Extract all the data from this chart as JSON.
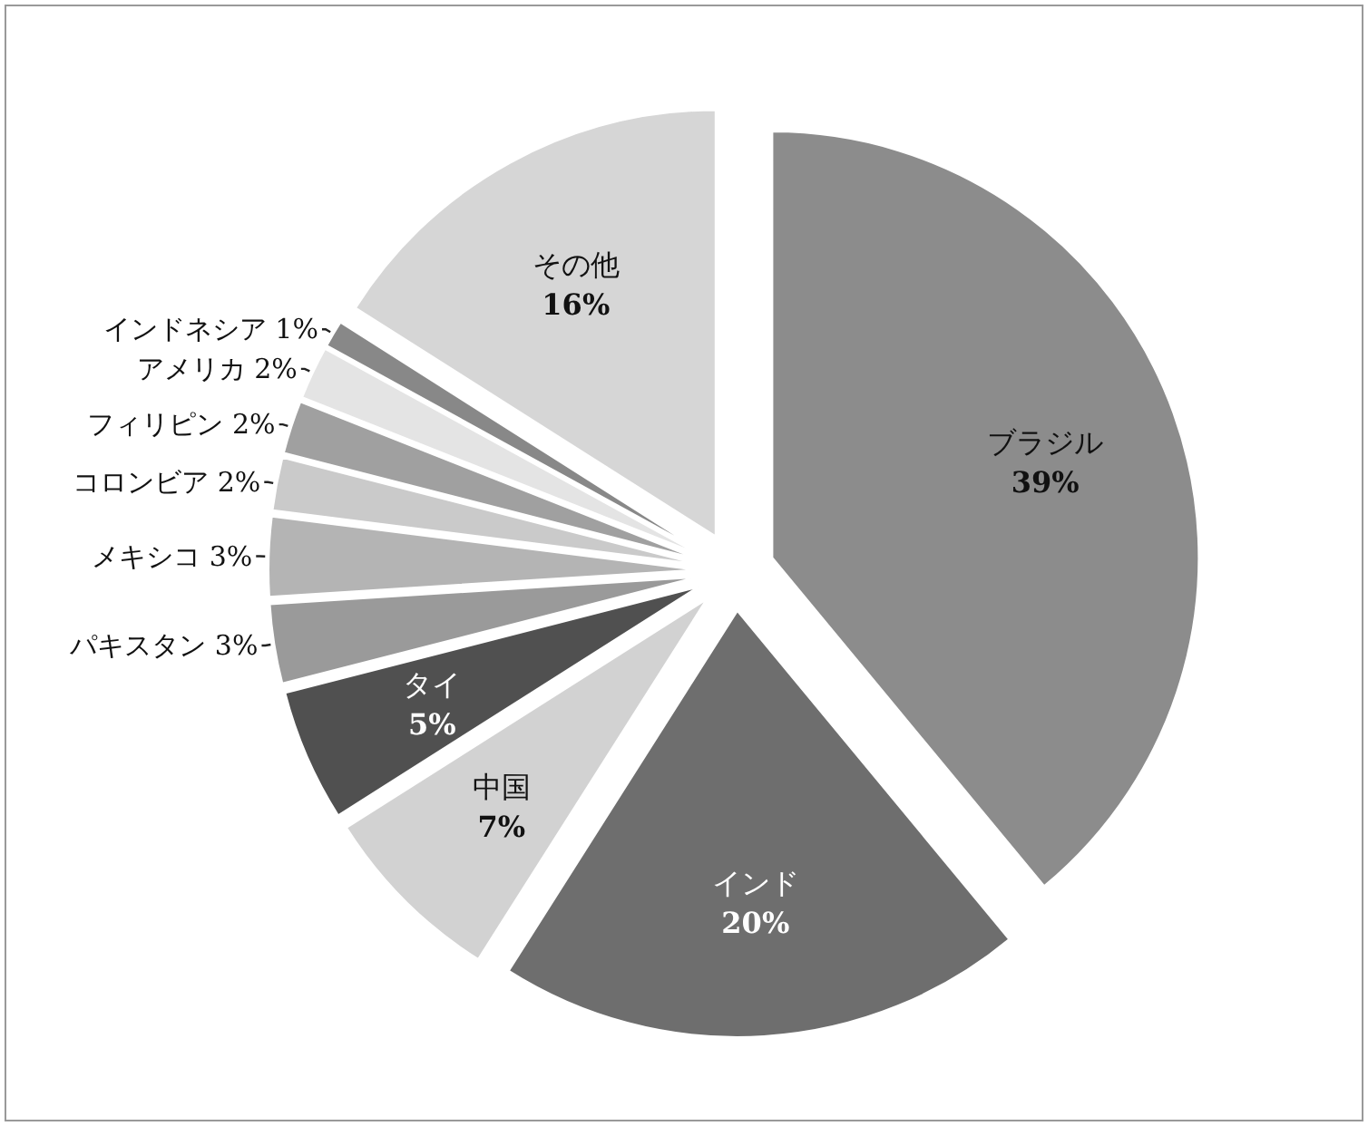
{
  "chart_data": {
    "type": "pie",
    "categories": [
      "ブラジル",
      "インド",
      "中国",
      "タイ",
      "パキスタン",
      "メキシコ",
      "コロンビア",
      "フィリピン",
      "アメリカ",
      "インドネシア",
      "その他"
    ],
    "values": [
      39,
      20,
      7,
      5,
      3,
      3,
      2,
      2,
      2,
      1,
      16
    ],
    "colors": [
      "#8c8c8c",
      "#6e6e6e",
      "#d2d2d2",
      "#505050",
      "#9a9a9a",
      "#b4b4b4",
      "#cacaca",
      "#a0a0a0",
      "#e4e4e4",
      "#888888",
      "#d6d6d6"
    ],
    "value_labels": [
      "39%",
      "20%",
      "7%",
      "5%",
      "3%",
      "3%",
      "2%",
      "2%",
      "2%",
      "1%",
      "16%"
    ]
  }
}
